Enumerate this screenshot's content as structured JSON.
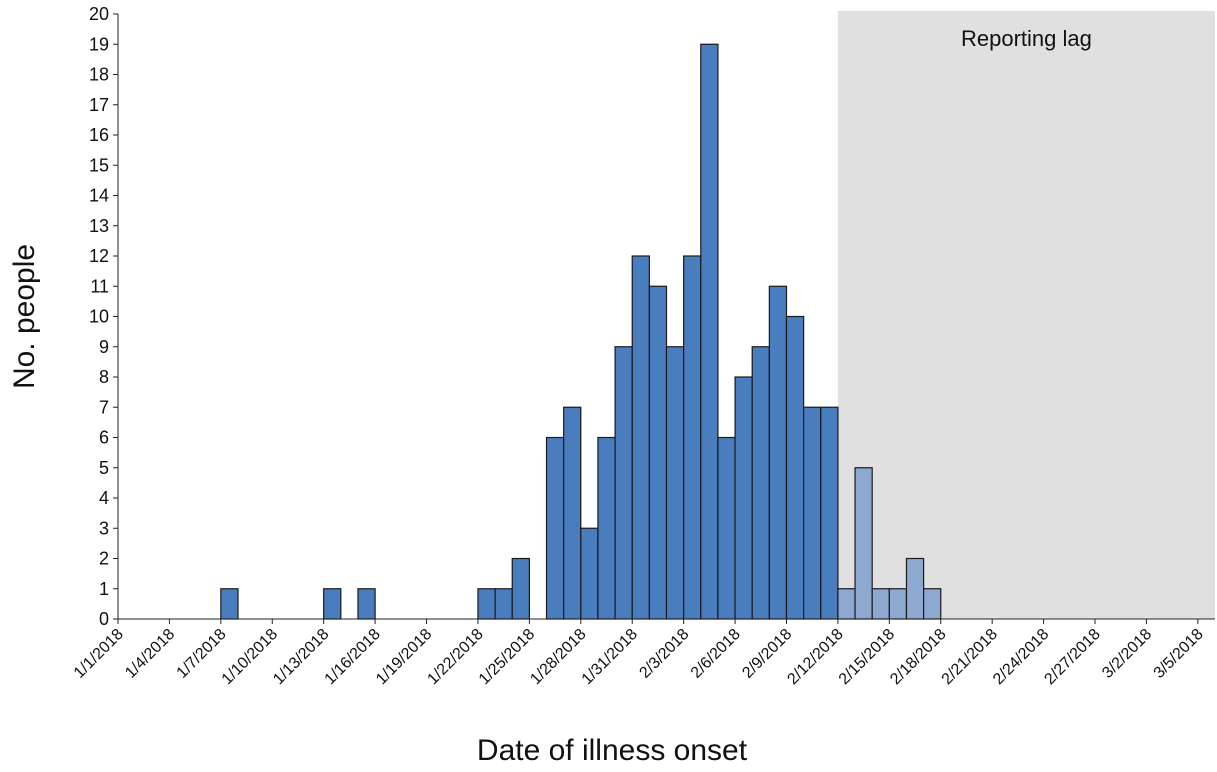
{
  "chart_data": {
    "type": "bar",
    "xlabel": "Date of illness onset",
    "ylabel": "No. people",
    "ylim": [
      0,
      20
    ],
    "yticks": [
      0,
      1,
      2,
      3,
      4,
      5,
      6,
      7,
      8,
      9,
      10,
      11,
      12,
      13,
      14,
      15,
      16,
      17,
      18,
      19,
      20
    ],
    "x_tick_labels": [
      "1/1/2018",
      "1/4/2018",
      "1/7/2018",
      "1/10/2018",
      "1/13/2018",
      "1/16/2018",
      "1/19/2018",
      "1/22/2018",
      "1/25/2018",
      "1/28/2018",
      "1/31/2018",
      "2/3/2018",
      "2/6/2018",
      "2/9/2018",
      "2/12/2018",
      "2/15/2018",
      "2/18/2018",
      "2/21/2018",
      "2/24/2018",
      "2/27/2018",
      "3/2/2018",
      "3/5/2018"
    ],
    "x_range": [
      "1/1/2018",
      "3/6/2018"
    ],
    "shaded_region": {
      "label": "Reporting lag",
      "start": "2/12/2018",
      "end": "3/6/2018",
      "color": "#e0e0e0"
    },
    "series": [
      {
        "color": "#4a7dbd",
        "points": [
          {
            "date": "1/7/2018",
            "value": 1
          },
          {
            "date": "1/13/2018",
            "value": 1
          },
          {
            "date": "1/15/2018",
            "value": 1
          },
          {
            "date": "1/22/2018",
            "value": 1
          },
          {
            "date": "1/23/2018",
            "value": 1
          },
          {
            "date": "1/24/2018",
            "value": 2
          },
          {
            "date": "1/26/2018",
            "value": 6
          },
          {
            "date": "1/27/2018",
            "value": 7
          },
          {
            "date": "1/28/2018",
            "value": 3
          },
          {
            "date": "1/29/2018",
            "value": 6
          },
          {
            "date": "1/30/2018",
            "value": 9
          },
          {
            "date": "1/31/2018",
            "value": 12
          },
          {
            "date": "2/1/2018",
            "value": 11
          },
          {
            "date": "2/2/2018",
            "value": 9
          },
          {
            "date": "2/3/2018",
            "value": 12
          },
          {
            "date": "2/4/2018",
            "value": 19
          },
          {
            "date": "2/5/2018",
            "value": 6
          },
          {
            "date": "2/6/2018",
            "value": 8
          },
          {
            "date": "2/7/2018",
            "value": 9
          },
          {
            "date": "2/8/2018",
            "value": 11
          },
          {
            "date": "2/9/2018",
            "value": 10
          },
          {
            "date": "2/10/2018",
            "value": 7
          },
          {
            "date": "2/11/2018",
            "value": 7
          }
        ]
      },
      {
        "color": "#8ea9cf",
        "points": [
          {
            "date": "2/12/2018",
            "value": 1
          },
          {
            "date": "2/13/2018",
            "value": 5
          },
          {
            "date": "2/14/2018",
            "value": 1
          },
          {
            "date": "2/15/2018",
            "value": 1
          },
          {
            "date": "2/16/2018",
            "value": 2
          },
          {
            "date": "2/17/2018",
            "value": 1
          }
        ]
      }
    ]
  }
}
